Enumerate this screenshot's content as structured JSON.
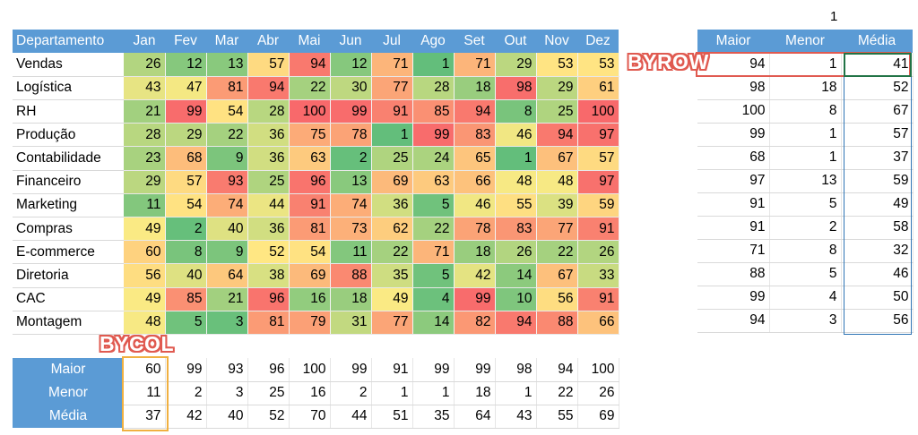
{
  "main": {
    "header_first": "Departamento",
    "months": [
      "Jan",
      "Fev",
      "Mar",
      "Abr",
      "Mai",
      "Jun",
      "Jul",
      "Ago",
      "Set",
      "Out",
      "Nov",
      "Dez"
    ],
    "rows": [
      {
        "name": "Vendas",
        "values": [
          "26",
          "12",
          "13",
          "57",
          "94",
          "12",
          "71",
          "1",
          "71",
          "29",
          "53",
          "53"
        ]
      },
      {
        "name": "Logística",
        "values": [
          "43",
          "47",
          "81",
          "94",
          "22",
          "30",
          "77",
          "28",
          "18",
          "98",
          "29",
          "61"
        ]
      },
      {
        "name": "RH",
        "values": [
          "21",
          "99",
          "54",
          "28",
          "100",
          "99",
          "91",
          "85",
          "94",
          "8",
          "25",
          "100"
        ]
      },
      {
        "name": "Produção",
        "values": [
          "28",
          "29",
          "22",
          "36",
          "75",
          "78",
          "1",
          "99",
          "83",
          "46",
          "94",
          "97"
        ]
      },
      {
        "name": "Contabilidade",
        "values": [
          "23",
          "68",
          "9",
          "36",
          "63",
          "2",
          "25",
          "24",
          "65",
          "1",
          "67",
          "57"
        ]
      },
      {
        "name": "Financeiro",
        "values": [
          "29",
          "57",
          "93",
          "25",
          "96",
          "13",
          "69",
          "63",
          "66",
          "48",
          "48",
          "97"
        ]
      },
      {
        "name": "Marketing",
        "values": [
          "11",
          "54",
          "74",
          "44",
          "91",
          "74",
          "36",
          "5",
          "46",
          "55",
          "39",
          "59"
        ]
      },
      {
        "name": "Compras",
        "values": [
          "49",
          "2",
          "40",
          "36",
          "81",
          "73",
          "62",
          "22",
          "78",
          "83",
          "77",
          "91"
        ]
      },
      {
        "name": "E-commerce",
        "values": [
          "60",
          "8",
          "9",
          "52",
          "54",
          "11",
          "22",
          "71",
          "18",
          "26",
          "22",
          "26"
        ]
      },
      {
        "name": "Diretoria",
        "values": [
          "56",
          "40",
          "64",
          "38",
          "69",
          "88",
          "35",
          "5",
          "42",
          "14",
          "67",
          "33"
        ]
      },
      {
        "name": "CAC",
        "values": [
          "49",
          "85",
          "21",
          "96",
          "16",
          "18",
          "49",
          "4",
          "99",
          "10",
          "56",
          "91"
        ]
      },
      {
        "name": "Montagem",
        "values": [
          "48",
          "5",
          "3",
          "81",
          "79",
          "31",
          "77",
          "14",
          "82",
          "94",
          "88",
          "66"
        ]
      }
    ]
  },
  "byrow": {
    "headers": [
      "Maior",
      "Menor",
      "Média"
    ],
    "rows": [
      [
        "94",
        "1",
        "41"
      ],
      [
        "98",
        "18",
        "52"
      ],
      [
        "100",
        "8",
        "67"
      ],
      [
        "99",
        "1",
        "57"
      ],
      [
        "68",
        "1",
        "37"
      ],
      [
        "97",
        "13",
        "59"
      ],
      [
        "91",
        "5",
        "49"
      ],
      [
        "91",
        "2",
        "58"
      ],
      [
        "71",
        "8",
        "32"
      ],
      [
        "88",
        "5",
        "46"
      ],
      [
        "99",
        "4",
        "50"
      ],
      [
        "94",
        "3",
        "56"
      ]
    ]
  },
  "bycol": {
    "labels": [
      "Maior",
      "Menor",
      "Média"
    ],
    "rows": [
      [
        "60",
        "99",
        "93",
        "96",
        "100",
        "99",
        "91",
        "99",
        "99",
        "98",
        "94",
        "100"
      ],
      [
        "11",
        "2",
        "3",
        "25",
        "16",
        "2",
        "1",
        "1",
        "18",
        "1",
        "22",
        "26"
      ],
      [
        "37",
        "42",
        "40",
        "52",
        "70",
        "44",
        "51",
        "35",
        "64",
        "43",
        "55",
        "69"
      ]
    ]
  },
  "cell_one": "1",
  "callouts": {
    "byrow": "BYROW",
    "bycol": "BYCOL"
  },
  "colors": {
    "header": "#5b9bd5",
    "low": "#63be7b",
    "mid": "#ffeb84",
    "high": "#f8696b",
    "byrow_box": "#e05a50",
    "bycol_box": "#f0b040"
  }
}
